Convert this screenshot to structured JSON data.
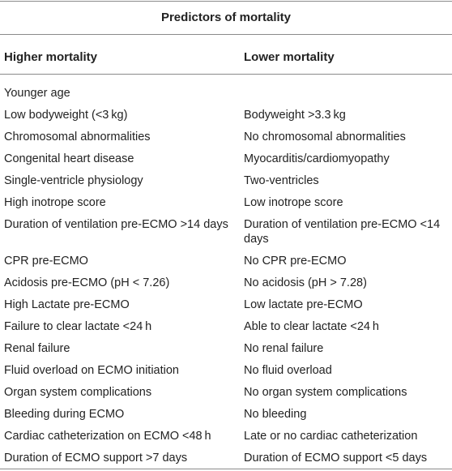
{
  "table": {
    "title": "Predictors of mortality",
    "headers": {
      "higher": "Higher mortality",
      "lower": "Lower mortality"
    },
    "rows": [
      {
        "higher": "Younger age",
        "lower": ""
      },
      {
        "higher": "Low bodyweight (<3 kg)",
        "lower": "Bodyweight >3.3 kg"
      },
      {
        "higher": "Chromosomal abnormalities",
        "lower": "No chromosomal abnormalities"
      },
      {
        "higher": "Congenital heart disease",
        "lower": "Myocarditis/cardiomyopathy"
      },
      {
        "higher": "Single-ventricle physiology",
        "lower": "Two-ventricles"
      },
      {
        "higher": "High inotrope score",
        "lower": "Low inotrope score"
      },
      {
        "higher": "Duration of ventilation pre-ECMO >14 days",
        "lower": "Duration of ventilation pre-ECMO <14 days"
      },
      {
        "higher": "CPR pre-ECMO",
        "lower": "No CPR pre-ECMO"
      },
      {
        "higher": "Acidosis pre-ECMO (pH < 7.26)",
        "lower": "No acidosis (pH > 7.28)"
      },
      {
        "higher": "High Lactate pre-ECMO",
        "lower": "Low lactate pre-ECMO"
      },
      {
        "higher": "Failure to clear lactate <24 h",
        "lower": "Able to clear lactate <24 h"
      },
      {
        "higher": "Renal failure",
        "lower": "No renal failure"
      },
      {
        "higher": "Fluid overload on ECMO initiation",
        "lower": "No fluid overload"
      },
      {
        "higher": "Organ system complications",
        "lower": "No organ system complications"
      },
      {
        "higher": "Bleeding during ECMO",
        "lower": "No bleeding"
      },
      {
        "higher": "Cardiac catheterization on ECMO <48 h",
        "lower": "Late or no cardiac catheterization"
      },
      {
        "higher": "Duration of ECMO support >7 days",
        "lower": "Duration of ECMO support <5 days"
      }
    ]
  }
}
